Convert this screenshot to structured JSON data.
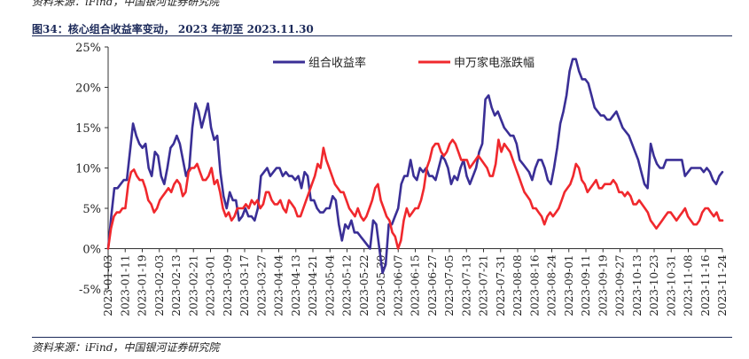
{
  "header": {
    "source_cut": "资料来源：iFind，中国银河证券研究院",
    "title": "图34：核心组合收益率变动，  2023 年初至 2023.11.30"
  },
  "footer": {
    "source": "资料来源：iFind，中国银河证券研究院"
  },
  "colors": {
    "series1": "#3a2f96",
    "series2": "#f0282d",
    "axis": "#333333",
    "title": "#1c2a5a"
  },
  "chart_data": {
    "type": "line",
    "title": "",
    "xlabel": "",
    "ylabel": "",
    "ylim": [
      -5,
      25
    ],
    "y_ticks": [
      "-5%",
      "0%",
      "5%",
      "10%",
      "15%",
      "20%",
      "25%"
    ],
    "x_ticks": [
      "2023-01-03",
      "2023-01-11",
      "2023-01-19",
      "2023-02-03",
      "2023-02-13",
      "2023-02-21",
      "2023-03-01",
      "2023-03-09",
      "2023-03-17",
      "2023-03-27",
      "2023-04-04",
      "2023-04-13",
      "2023-04-21",
      "2023-05-04",
      "2023-05-12",
      "2023-05-22",
      "2023-05-30",
      "2023-06-07",
      "2023-06-15",
      "2023-06-27",
      "2023-07-05",
      "2023-07-13",
      "2023-07-21",
      "2023-07-31",
      "2023-08-08",
      "2023-08-16",
      "2023-08-24",
      "2023-09-01",
      "2023-09-11",
      "2023-09-19",
      "2023-09-27",
      "2023-10-13",
      "2023-10-23",
      "2023-10-31",
      "2023-11-08",
      "2023-11-16",
      "2023-11-24"
    ],
    "legend_position": "top-center",
    "series": [
      {
        "name": "组合收益率",
        "color": "#3a2f96",
        "values": [
          0,
          4,
          7.5,
          7.5,
          8,
          8.5,
          8.5,
          12,
          15.5,
          14,
          13,
          12.5,
          13,
          10,
          9,
          12,
          11.5,
          9,
          8,
          10,
          12.5,
          13,
          14,
          13,
          11,
          9,
          10,
          15,
          18,
          17,
          15,
          16.5,
          18,
          15,
          13.5,
          14,
          9.5,
          6.5,
          5,
          7,
          6,
          6,
          3.5,
          4,
          5,
          4,
          4,
          3.5,
          5,
          9,
          9.5,
          10,
          9,
          9.5,
          10,
          10,
          9,
          9.5,
          9,
          9,
          8.5,
          9,
          7.5,
          9.5,
          9,
          6,
          6,
          5,
          4.5,
          4.5,
          5,
          5,
          6.5,
          6,
          3,
          1,
          3,
          2.5,
          3.5,
          2,
          2,
          1.5,
          1,
          0.5,
          0,
          3.5,
          3,
          0,
          -3,
          -2,
          3,
          3,
          4,
          5,
          8,
          9,
          9,
          11,
          9,
          8.5,
          10,
          9.5,
          10,
          9,
          9,
          8.5,
          10,
          11.5,
          11,
          10,
          8,
          9,
          8.5,
          10,
          11,
          9,
          8,
          9,
          10,
          12,
          13,
          18.5,
          19,
          17.5,
          16.5,
          17,
          16,
          15,
          14.5,
          14,
          14,
          13,
          11,
          10.5,
          10,
          9.5,
          8.5,
          10,
          11,
          11,
          10,
          8.5,
          8,
          10,
          12.5,
          15.5,
          17,
          19,
          22,
          23.5,
          23.5,
          22,
          21,
          21,
          20.5,
          19,
          17.5,
          17,
          16.5,
          16.5,
          16,
          16,
          16.5,
          17,
          16,
          15,
          14.5,
          14,
          13,
          12,
          11,
          9.5,
          8,
          7.5,
          13,
          11.5,
          10.5,
          10,
          10,
          11,
          11,
          11,
          11,
          11,
          11,
          9,
          9.5,
          10,
          10,
          10,
          10,
          9.5,
          10,
          9.5,
          8.5,
          8,
          9,
          9.5
        ],
        "value_notes": "approximate values read from plot"
      },
      {
        "name": "申万家电涨跌幅",
        "color": "#f0282d",
        "values": [
          0,
          2.5,
          4,
          4.5,
          4.5,
          5,
          5,
          8,
          9.5,
          9.8,
          9,
          8.5,
          8.5,
          7.5,
          6,
          5.5,
          4.5,
          5,
          6,
          6.5,
          7,
          7.5,
          7,
          8,
          8.5,
          8,
          6.5,
          7,
          9.5,
          10,
          10,
          10.5,
          9.5,
          8.5,
          8.5,
          9,
          10,
          8,
          8.5,
          7,
          5,
          4,
          4.5,
          3.5,
          4,
          5,
          5,
          5,
          5.5,
          5,
          6,
          5.5,
          6,
          5,
          5.5,
          7,
          7,
          6,
          5.5,
          5.5,
          6,
          5,
          4.5,
          6,
          5.5,
          5,
          4,
          4,
          5,
          6,
          7,
          8,
          9,
          10.5,
          10,
          12.5,
          11,
          10,
          9,
          8,
          7.5,
          7,
          7,
          6,
          5,
          4.5,
          4,
          5,
          4,
          3.5,
          4,
          5,
          6,
          7.5,
          8,
          6,
          5,
          4,
          3.5,
          2,
          1.5,
          0,
          1,
          3.5,
          5,
          4,
          4.5,
          5,
          5,
          6,
          7.5,
          10,
          11,
          12.5,
          13,
          13,
          12,
          11.5,
          12,
          13,
          13.5,
          13,
          12,
          11,
          11,
          11,
          10,
          10.5,
          11,
          11.5,
          11,
          10.5,
          10,
          9,
          9,
          10.5,
          13.5,
          12,
          13,
          12.5,
          12,
          11,
          10,
          9,
          8,
          7,
          6.5,
          6,
          5,
          5,
          4.5,
          4,
          3,
          4,
          4.5,
          4,
          4.5,
          5,
          6,
          7,
          7.5,
          8,
          9,
          10.5,
          10,
          8.5,
          8,
          7,
          7.5,
          8,
          8.5,
          7.5,
          7.5,
          8,
          8,
          8,
          8.5,
          8,
          7,
          7,
          6.5,
          7,
          6.5,
          5.5,
          5.5,
          6,
          5.5,
          5,
          4.5,
          3.5,
          3,
          2.5,
          3,
          3.5,
          4,
          4.5,
          4.5,
          4,
          3.5,
          4,
          4.5,
          5,
          4,
          3.5,
          3,
          3,
          3.5,
          4.5,
          5,
          5,
          4.5,
          4,
          4.5,
          3.5,
          3.5
        ]
      }
    ]
  }
}
